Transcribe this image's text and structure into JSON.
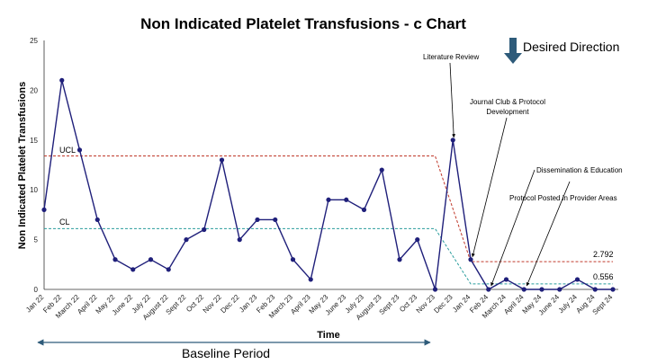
{
  "chart_data": {
    "type": "line",
    "title": "Non Indicated Platelet Transfusions -  c Chart",
    "xlabel": "Time",
    "ylabel": "Non Indicated Platelet Transfusions",
    "ylim": [
      0,
      25
    ],
    "yticks": [
      0,
      5,
      10,
      15,
      20,
      25
    ],
    "grid": false,
    "categories": [
      "Jan 22",
      "Feb 22",
      "March 22",
      "April 22",
      "May 22",
      "June 22",
      "July 22",
      "August 22",
      "Sept 22",
      "Oct 22",
      "Nov 22",
      "Dec 22",
      "Jan 23",
      "Feb 23",
      "March 23",
      "April 23",
      "May 23",
      "June 23",
      "July 23",
      "August 23",
      "Sept 23",
      "Oct 23",
      "Nov 23",
      "Dec 23",
      "Jan 24",
      "Feb 24",
      "March 24",
      "April 24",
      "May 24",
      "June 24",
      "July 24",
      "Aug 24",
      "Sept 24"
    ],
    "series": [
      {
        "values": [
          8,
          21,
          14,
          7,
          3,
          2,
          3,
          2,
          5,
          6,
          13,
          5,
          7,
          7,
          3,
          1,
          9,
          9,
          8,
          12,
          3,
          5,
          0,
          15,
          3,
          0,
          1,
          0,
          0,
          0,
          1,
          0,
          0
        ],
        "color": "#1f1f7a"
      }
    ],
    "ucl": {
      "label": "UCL",
      "baseline_value": 13.4,
      "post_value": 2.792,
      "post_label": "2.792",
      "color": "#c0392b"
    },
    "cl": {
      "label": "CL",
      "baseline_value": 6.1,
      "post_value": 0.556,
      "post_label": "0.556",
      "color": "#2a9d9d"
    },
    "annotations": [
      {
        "text": "Literature Review"
      },
      {
        "text": "Journal Club & Protocol"
      },
      {
        "text": "Development"
      },
      {
        "text": "Dissemination & Education"
      },
      {
        "text": "Protocol Posted in Provider Areas"
      }
    ],
    "desired_direction": {
      "label": "Desired Direction",
      "arrow": "down-arrow-icon",
      "color": "#2e5b7a"
    },
    "baseline_period": {
      "label": "Baseline Period",
      "color": "#2e5b7a"
    }
  }
}
